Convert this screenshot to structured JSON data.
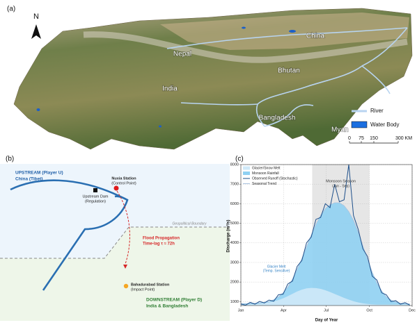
{
  "map": {
    "panel_label": "(a)",
    "north": "N",
    "countries": [
      "Nepal",
      "China",
      "Bhutan",
      "India",
      "Bangladesh",
      "Myan"
    ],
    "legend": [
      "River",
      "Water Body"
    ],
    "scale": [
      "0",
      "75",
      "150",
      "300 KM"
    ]
  },
  "diagram": {
    "panel_label": "(b)",
    "upstream": [
      "UPSTREAM (Player U)",
      "China (Tibet)"
    ],
    "nuxia": [
      "Nuxia Station",
      "(Control Point)"
    ],
    "dam": [
      "Upstream Dam",
      "(Regulation)"
    ],
    "boundary": "Geopolitical Boundary",
    "flood": [
      "Flood Propagation",
      "Time-lag τ ≈ 72h"
    ],
    "bahadurabad": [
      "Bahadurabad Station",
      "(Impact Point)"
    ],
    "downstream": [
      "DOWNSTREAM (Player D)",
      "India & Bangladesh"
    ]
  },
  "chart_data": {
    "type": "area",
    "panel_label": "(c)",
    "xlabel": "Day of Year",
    "ylabel": "Discharge (m³/s)",
    "x": [
      0,
      10,
      20,
      30,
      40,
      50,
      60,
      70,
      80,
      90,
      100,
      110,
      120,
      130,
      140,
      150,
      160,
      170,
      180,
      190,
      200,
      210,
      220,
      230,
      240,
      250,
      260,
      270,
      280,
      290,
      300,
      310,
      320,
      330,
      340,
      350,
      360
    ],
    "xlim": [
      0,
      365
    ],
    "xticks": [
      {
        "value": 0,
        "label": "Jan"
      },
      {
        "value": 91,
        "label": "Apr"
      },
      {
        "value": 182,
        "label": "Jul"
      },
      {
        "value": 274,
        "label": "Oct"
      },
      {
        "value": 365,
        "label": "Dec"
      }
    ],
    "ylim": [
      800,
      8000
    ],
    "yticks": [
      1000,
      2000,
      3000,
      4000,
      5000,
      6000,
      7000,
      8000
    ],
    "grid": true,
    "monsoon": {
      "label": "Monsoon Season",
      "sublabel": "(Jun - Sep)",
      "span": [
        152,
        274
      ]
    },
    "annotation": [
      "Glacier Melt",
      "(Temp. Sensitive)"
    ],
    "series": [
      {
        "name": "Glacier/Snow Melt",
        "color": "#cfe9f8",
        "style": "area",
        "values": [
          850,
          850,
          860,
          870,
          890,
          920,
          960,
          1010,
          1080,
          1170,
          1280,
          1400,
          1520,
          1610,
          1680,
          1700,
          1690,
          1650,
          1580,
          1490,
          1390,
          1290,
          1190,
          1100,
          1020,
          960,
          910,
          880,
          860,
          850,
          850,
          850,
          850,
          850,
          850,
          850,
          850
        ]
      },
      {
        "name": "Monsoon Rainfall",
        "color": "#8fd0f2",
        "style": "area",
        "values": [
          900,
          900,
          910,
          920,
          940,
          970,
          1000,
          1100,
          1250,
          1450,
          1750,
          2150,
          2650,
          3200,
          3800,
          4400,
          4950,
          5400,
          5750,
          5950,
          6050,
          6050,
          5900,
          5600,
          5150,
          4550,
          3850,
          3150,
          2500,
          1950,
          1550,
          1250,
          1080,
          980,
          920,
          900,
          890
        ]
      },
      {
        "name": "Observed Runoff (Stochastic)",
        "color": "#1d4f8a",
        "style": "line",
        "values": [
          880,
          820,
          960,
          870,
          1010,
          930,
          1080,
          1020,
          1350,
          1380,
          1900,
          2050,
          2800,
          3100,
          4000,
          4300,
          5200,
          5300,
          6000,
          5800,
          7000,
          6100,
          6200,
          8000,
          5400,
          4700,
          3700,
          3300,
          2300,
          2100,
          1450,
          1350,
          1000,
          1050,
          870,
          950,
          820
        ]
      },
      {
        "name": "Seasonal Trend",
        "color": "#a9c2de",
        "style": "line",
        "values": [
          900,
          900,
          910,
          920,
          940,
          970,
          1000,
          1100,
          1250,
          1450,
          1750,
          2150,
          2650,
          3200,
          3800,
          4400,
          4950,
          5400,
          5750,
          5950,
          6050,
          6050,
          5900,
          5600,
          5150,
          4550,
          3850,
          3150,
          2500,
          1950,
          1550,
          1250,
          1080,
          980,
          920,
          900,
          890
        ]
      }
    ]
  }
}
